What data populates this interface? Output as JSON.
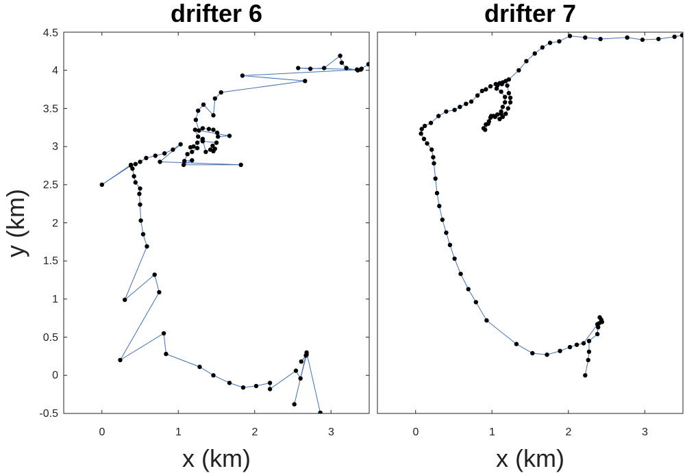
{
  "chart_data": [
    {
      "type": "line",
      "title": "drifter 6",
      "xlabel": "x (km)",
      "ylabel": "y (km)",
      "xlim": [
        -0.5,
        3.5
      ],
      "ylim": [
        -0.5,
        4.5
      ],
      "xticks": [
        0,
        1,
        2,
        3
      ],
      "yticks": [
        -0.5,
        0,
        0.5,
        1,
        1.5,
        2,
        2.5,
        3,
        3.5,
        4,
        4.5
      ],
      "xtick_labels": [
        "0",
        "1",
        "2",
        "3"
      ],
      "ytick_labels": [
        "-0.5",
        "0",
        "0.5",
        "1",
        "1.5",
        "2",
        "2.5",
        "3",
        "3.5",
        "4",
        "4.5"
      ],
      "grid": false,
      "series": [
        {
          "line_color": "#3f6fb8",
          "marker_color": "#000000",
          "points": [
            [
              2.86,
              -0.49
            ],
            [
              2.68,
              0.3
            ],
            [
              2.52,
              -0.38
            ],
            [
              2.67,
              0.26
            ],
            [
              2.61,
              0.18
            ],
            [
              2.68,
              0.27
            ],
            [
              2.6,
              -0.04
            ],
            [
              2.54,
              0.06
            ],
            [
              2.2,
              -0.18
            ],
            [
              2.2,
              -0.1
            ],
            [
              2.02,
              -0.14
            ],
            [
              1.85,
              -0.16
            ],
            [
              1.67,
              -0.1
            ],
            [
              1.46,
              0.0
            ],
            [
              1.28,
              0.11
            ],
            [
              0.84,
              0.28
            ],
            [
              0.81,
              0.55
            ],
            [
              0.24,
              0.2
            ],
            [
              0.75,
              1.09
            ],
            [
              0.69,
              1.32
            ],
            [
              0.3,
              0.99
            ],
            [
              0.59,
              1.69
            ],
            [
              0.54,
              1.85
            ],
            [
              0.51,
              2.03
            ],
            [
              0.5,
              2.24
            ],
            [
              0.49,
              2.38
            ],
            [
              0.5,
              2.45
            ],
            [
              0.44,
              2.53
            ],
            [
              0.42,
              2.61
            ],
            [
              0.4,
              2.71
            ],
            [
              0.38,
              2.76
            ],
            [
              0.0,
              2.5
            ],
            [
              0.38,
              2.75
            ],
            [
              0.44,
              2.77
            ],
            [
              0.5,
              2.8
            ],
            [
              0.58,
              2.85
            ],
            [
              0.7,
              2.88
            ],
            [
              0.82,
              2.91
            ],
            [
              0.93,
              2.96
            ],
            [
              1.03,
              3.03
            ],
            [
              0.76,
              2.8
            ],
            [
              1.82,
              2.76
            ],
            [
              1.07,
              2.76
            ],
            [
              1.18,
              2.82
            ],
            [
              1.08,
              2.81
            ],
            [
              1.12,
              2.9
            ],
            [
              1.18,
              2.93
            ],
            [
              1.25,
              2.98
            ],
            [
              1.16,
              2.99
            ],
            [
              1.2,
              3.0
            ],
            [
              1.25,
              3.05
            ],
            [
              1.32,
              3.1
            ],
            [
              1.36,
              2.93
            ],
            [
              1.42,
              2.96
            ],
            [
              1.48,
              2.97
            ],
            [
              1.46,
              2.94
            ],
            [
              1.45,
              3.01
            ],
            [
              1.5,
              3.05
            ],
            [
              1.32,
              3.07
            ],
            [
              1.26,
              3.13
            ],
            [
              1.22,
              3.22
            ],
            [
              1.32,
              3.24
            ],
            [
              1.4,
              3.23
            ],
            [
              1.46,
              3.22
            ],
            [
              1.51,
              3.18
            ],
            [
              1.52,
              3.13
            ],
            [
              1.67,
              3.14
            ],
            [
              1.27,
              3.21
            ],
            [
              1.23,
              3.35
            ],
            [
              1.26,
              3.47
            ],
            [
              1.33,
              3.55
            ],
            [
              1.46,
              3.41
            ],
            [
              1.48,
              3.63
            ],
            [
              1.56,
              3.71
            ],
            [
              2.66,
              3.86
            ],
            [
              1.84,
              3.93
            ],
            [
              3.39,
              4.01
            ],
            [
              3.35,
              4.0
            ],
            [
              3.2,
              4.03
            ],
            [
              3.14,
              4.1
            ],
            [
              3.12,
              4.19
            ],
            [
              2.91,
              4.03
            ],
            [
              2.73,
              4.02
            ],
            [
              2.57,
              4.03
            ],
            [
              3.34,
              4.01
            ],
            [
              3.4,
              4.02
            ],
            [
              3.49,
              4.08
            ],
            [
              3.52,
              4.09
            ]
          ]
        }
      ]
    },
    {
      "type": "line",
      "title": "drifter 7",
      "xlabel": "x (km)",
      "ylabel": "",
      "xlim": [
        -0.5,
        3.5
      ],
      "ylim": [
        -0.5,
        4.5
      ],
      "xticks": [
        0,
        1,
        2,
        3
      ],
      "yticks": [],
      "xtick_labels": [
        "0",
        "1",
        "2",
        "3"
      ],
      "ytick_labels": [],
      "grid": false,
      "series": [
        {
          "line_color": "#3f6fb8",
          "marker_color": "#000000",
          "points": [
            [
              2.22,
              0.0
            ],
            [
              2.26,
              0.2
            ],
            [
              2.27,
              0.31
            ],
            [
              2.27,
              0.45
            ],
            [
              2.38,
              0.54
            ],
            [
              2.39,
              0.63
            ],
            [
              2.4,
              0.68
            ],
            [
              2.44,
              0.7
            ],
            [
              2.43,
              0.73
            ],
            [
              2.41,
              0.76
            ],
            [
              2.43,
              0.7
            ],
            [
              2.38,
              0.67
            ],
            [
              2.2,
              0.42
            ],
            [
              2.11,
              0.4
            ],
            [
              2.02,
              0.37
            ],
            [
              1.89,
              0.32
            ],
            [
              1.72,
              0.27
            ],
            [
              1.53,
              0.29
            ],
            [
              1.32,
              0.41
            ],
            [
              0.93,
              0.72
            ],
            [
              0.79,
              0.96
            ],
            [
              0.69,
              1.13
            ],
            [
              0.59,
              1.33
            ],
            [
              0.51,
              1.53
            ],
            [
              0.45,
              1.71
            ],
            [
              0.4,
              1.87
            ],
            [
              0.35,
              2.04
            ],
            [
              0.31,
              2.22
            ],
            [
              0.28,
              2.39
            ],
            [
              0.26,
              2.58
            ],
            [
              0.24,
              2.78
            ],
            [
              0.23,
              2.86
            ],
            [
              0.21,
              2.96
            ],
            [
              0.15,
              3.04
            ],
            [
              0.11,
              3.1
            ],
            [
              0.07,
              3.17
            ],
            [
              0.08,
              3.23
            ],
            [
              0.12,
              3.27
            ],
            [
              0.2,
              3.31
            ],
            [
              0.3,
              3.4
            ],
            [
              0.4,
              3.46
            ],
            [
              0.51,
              3.48
            ],
            [
              0.58,
              3.52
            ],
            [
              0.66,
              3.56
            ],
            [
              0.73,
              3.59
            ],
            [
              0.81,
              3.67
            ],
            [
              0.87,
              3.73
            ],
            [
              0.92,
              3.75
            ],
            [
              0.98,
              3.79
            ],
            [
              1.05,
              3.82
            ],
            [
              1.1,
              3.83
            ],
            [
              1.14,
              3.84
            ],
            [
              1.18,
              3.86
            ],
            [
              1.2,
              3.8
            ],
            [
              1.22,
              3.7
            ],
            [
              1.24,
              3.64
            ],
            [
              1.24,
              3.58
            ],
            [
              1.21,
              3.5
            ],
            [
              1.18,
              3.43
            ],
            [
              1.14,
              3.39
            ],
            [
              1.12,
              3.43
            ],
            [
              1.1,
              3.36
            ],
            [
              1.04,
              3.39
            ],
            [
              0.99,
              3.4
            ],
            [
              0.96,
              3.33
            ],
            [
              0.92,
              3.29
            ],
            [
              0.89,
              3.24
            ],
            [
              0.91,
              3.22
            ],
            [
              0.95,
              3.3
            ],
            [
              0.98,
              3.38
            ],
            [
              1.02,
              3.4
            ],
            [
              1.07,
              3.42
            ],
            [
              1.12,
              3.46
            ],
            [
              1.14,
              3.52
            ],
            [
              1.17,
              3.58
            ],
            [
              1.17,
              3.65
            ],
            [
              1.12,
              3.72
            ],
            [
              1.06,
              3.76
            ],
            [
              1.07,
              3.8
            ],
            [
              1.13,
              3.82
            ],
            [
              1.22,
              3.88
            ],
            [
              1.35,
              4.0
            ],
            [
              1.45,
              4.12
            ],
            [
              1.56,
              4.22
            ],
            [
              1.66,
              4.3
            ],
            [
              1.76,
              4.36
            ],
            [
              1.88,
              4.38
            ],
            [
              2.02,
              4.45
            ],
            [
              2.22,
              4.43
            ],
            [
              2.42,
              4.41
            ],
            [
              2.77,
              4.43
            ],
            [
              2.97,
              4.4
            ],
            [
              3.18,
              4.41
            ],
            [
              3.39,
              4.44
            ],
            [
              3.49,
              4.46
            ]
          ]
        }
      ]
    }
  ]
}
